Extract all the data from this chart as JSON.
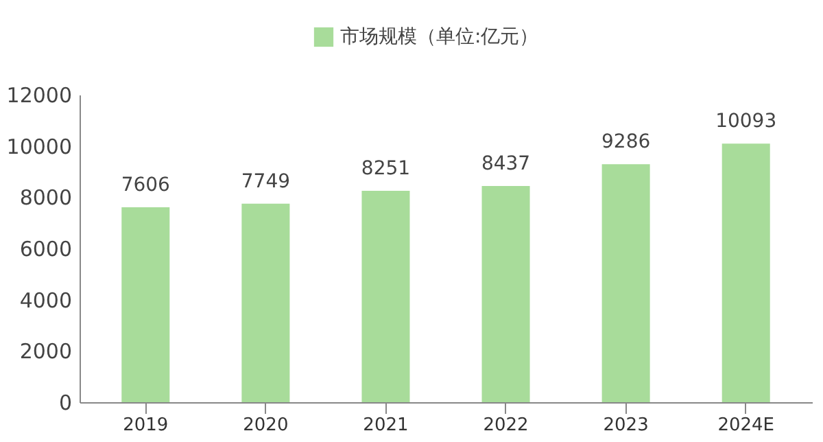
{
  "chart_data": {
    "type": "bar",
    "categories": [
      "2019",
      "2020",
      "2021",
      "2022",
      "2023",
      "2024E"
    ],
    "series": [
      {
        "name": "市场规模（单位:亿元）",
        "color": "#a8dc9a",
        "values": [
          7606,
          7749,
          8251,
          8437,
          9286,
          10093
        ]
      }
    ],
    "ylim": [
      0,
      12000
    ],
    "yticks": [
      0,
      2000,
      4000,
      6000,
      8000,
      10000,
      12000
    ],
    "data_labels": true,
    "legend": "top"
  }
}
